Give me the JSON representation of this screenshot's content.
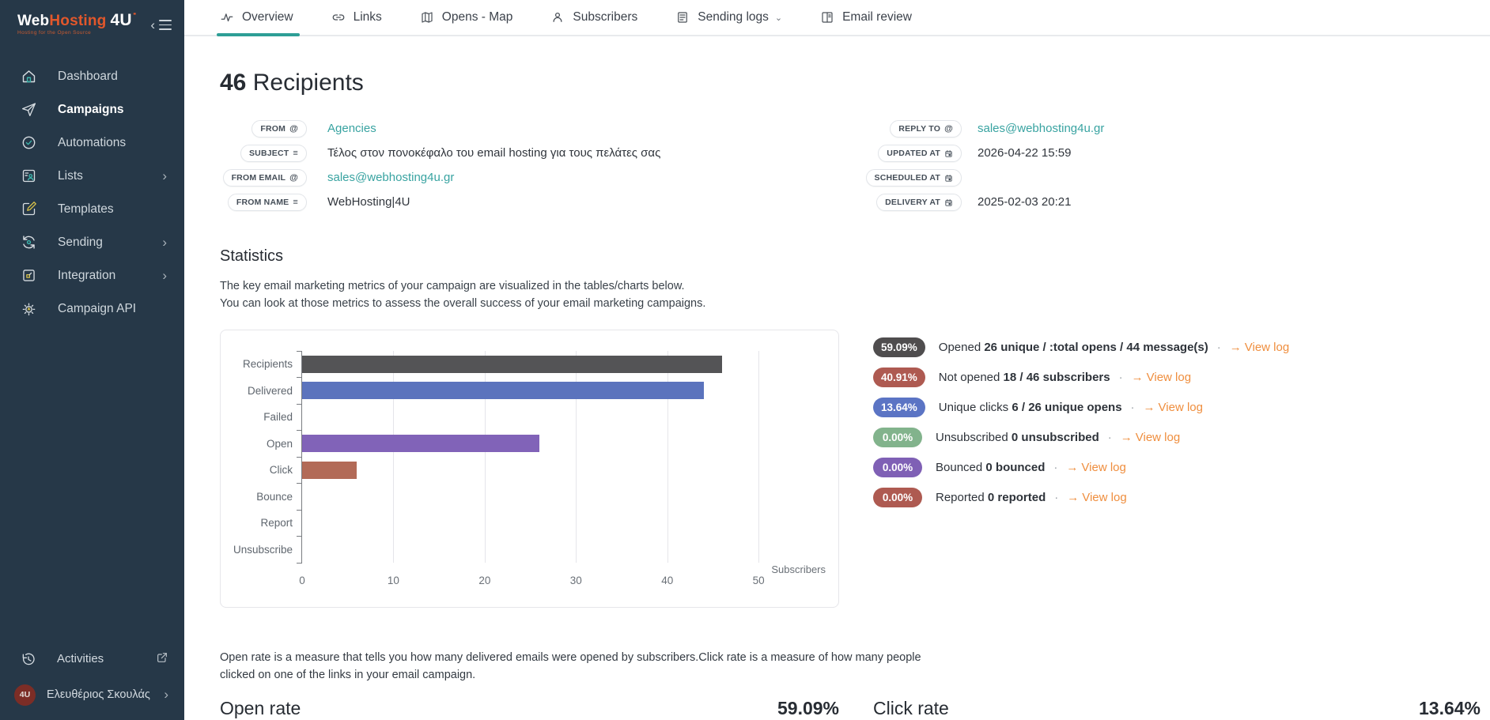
{
  "brand": {
    "name_part1": "Web",
    "name_part2": "Hosting",
    "suffix": "4U",
    "tagline": "Hosting for the Open Source"
  },
  "sidebar": {
    "items": [
      {
        "label": "Dashboard",
        "icon": "home",
        "active": false,
        "expandable": false
      },
      {
        "label": "Campaigns",
        "icon": "paper-plane",
        "active": true,
        "expandable": false
      },
      {
        "label": "Automations",
        "icon": "clock-check",
        "active": false,
        "expandable": false
      },
      {
        "label": "Lists",
        "icon": "list-person",
        "active": false,
        "expandable": true
      },
      {
        "label": "Templates",
        "icon": "pencil-square",
        "active": false,
        "expandable": false
      },
      {
        "label": "Sending",
        "icon": "sync",
        "active": false,
        "expandable": true
      },
      {
        "label": "Integration",
        "icon": "integration-box",
        "active": false,
        "expandable": true
      },
      {
        "label": "Campaign API",
        "icon": "gear",
        "active": false,
        "expandable": false
      }
    ],
    "footer": {
      "activities_label": "Activities",
      "user_name": "Ελευθέριος Σκουλάς",
      "avatar_text": "4U"
    }
  },
  "tabs": [
    {
      "label": "Overview",
      "active": true
    },
    {
      "label": "Links",
      "active": false
    },
    {
      "label": "Opens - Map",
      "active": false
    },
    {
      "label": "Subscribers",
      "active": false
    },
    {
      "label": "Sending logs",
      "active": false,
      "has_dropdown": true
    },
    {
      "label": "Email review",
      "active": false
    }
  ],
  "header": {
    "count": "46",
    "title": "Recipients"
  },
  "details": {
    "left": [
      {
        "label": "FROM",
        "icon": "at",
        "value": "Agencies"
      },
      {
        "label": "SUBJECT",
        "icon": "text-lines",
        "value": "Τέλος στον πονοκέφαλο του email hosting για τους πελάτες σας"
      },
      {
        "label": "FROM EMAIL",
        "icon": "at",
        "value": "sales@webhosting4u.gr"
      },
      {
        "label": "FROM NAME",
        "icon": "text-lines",
        "value": "WebHosting|4U"
      }
    ],
    "right": [
      {
        "label": "REPLY TO",
        "icon": "at",
        "value": "sales@webhosting4u.gr"
      },
      {
        "label": "UPDATED AT",
        "icon": "calendar",
        "value": "2026-04-22 15:59"
      },
      {
        "label": "SCHEDULED AT",
        "icon": "calendar",
        "value": ""
      },
      {
        "label": "DELIVERY AT",
        "icon": "calendar",
        "value": "2025-02-03 20:21"
      }
    ]
  },
  "statistics": {
    "title": "Statistics",
    "desc_line1": "The key email marketing metrics of your campaign are visualized in the tables/charts below.",
    "desc_line2": "You can look at those metrics to assess the overall success of your email marketing campaigns."
  },
  "chart_data": {
    "type": "bar",
    "orientation": "horizontal",
    "categories": [
      "Recipients",
      "Delivered",
      "Failed",
      "Open",
      "Click",
      "Bounce",
      "Report",
      "Unsubscribe"
    ],
    "values": [
      46,
      44,
      0,
      26,
      6,
      0,
      0,
      0
    ],
    "colors": [
      "#545456",
      "#5b73bd",
      "#cccccc",
      "#8163b8",
      "#b26a57",
      "#cccccc",
      "#cccccc",
      "#cccccc"
    ],
    "xlabel": "Subscribers",
    "x_ticks": [
      0,
      10,
      20,
      30,
      40,
      50
    ],
    "xlim": [
      0,
      57
    ],
    "grid": true,
    "legend": false,
    "title": ""
  },
  "stats_rows": [
    {
      "pct": "59.09%",
      "color": "#4f4d4e",
      "label": "Opened",
      "value": "26 unique / :total opens / 44 message(s)",
      "link": "View log"
    },
    {
      "pct": "40.91%",
      "color": "#ae5a51",
      "label": "Not opened",
      "value": "18 / 46 subscribers",
      "link": "View log"
    },
    {
      "pct": "13.64%",
      "color": "#5b74c4",
      "label": "Unique clicks",
      "value": "6 / 26 unique opens",
      "link": "View log"
    },
    {
      "pct": "0.00%",
      "color": "#82b38c",
      "label": "Unsubscribed",
      "value": "0 unsubscribed",
      "link": "View log"
    },
    {
      "pct": "0.00%",
      "color": "#7f60b5",
      "label": "Bounced",
      "value": "0 bounced",
      "link": "View log"
    },
    {
      "pct": "0.00%",
      "color": "#ae5a51",
      "label": "Reported",
      "value": "0 reported",
      "link": "View log"
    }
  ],
  "footer_note": {
    "line1": "Open rate is a measure that tells you how many delivered emails were opened by subscribers.Click rate is a measure of how many people",
    "line2": "clicked on one of the links in your email campaign."
  },
  "rates": {
    "open_label": "Open rate",
    "open_value": "59.09%",
    "click_label": "Click rate",
    "click_value": "13.64%"
  },
  "colors": {
    "accent_teal": "#2d9e96",
    "link_teal": "#38a3a1",
    "link_orange": "#ef8e3e",
    "sidebar_bg": "#263848",
    "logo_orange": "#e2572b"
  }
}
